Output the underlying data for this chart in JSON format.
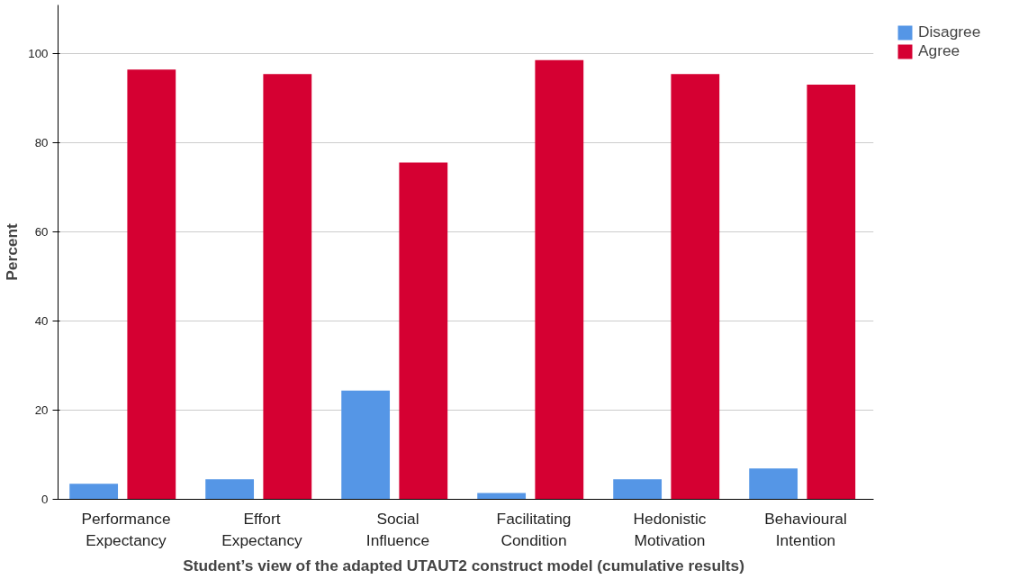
{
  "chart_data": {
    "type": "bar",
    "xlabel": "Student’s view of the adapted UTAUT2 construct model  (cumulative results)",
    "ylabel": "Percent",
    "categories": [
      "Performance Expectancy",
      "Effort Expectancy",
      "Social Influence",
      "Facilitating Condition",
      "Hedonistic Motivation",
      "Behavioural Intention"
    ],
    "series": [
      {
        "name": "Disagree",
        "color": "#5596e6",
        "values": [
          3.5,
          4.5,
          24.4,
          1.4,
          4.5,
          6.9
        ]
      },
      {
        "name": "Agree",
        "color": "#d50032",
        "values": [
          96.5,
          95.5,
          75.6,
          98.6,
          95.5,
          93.1
        ]
      }
    ],
    "ylim": [
      0,
      111
    ],
    "yticks": [
      0,
      20,
      40,
      60,
      80,
      100
    ],
    "grid": "y",
    "legend": "top right"
  }
}
